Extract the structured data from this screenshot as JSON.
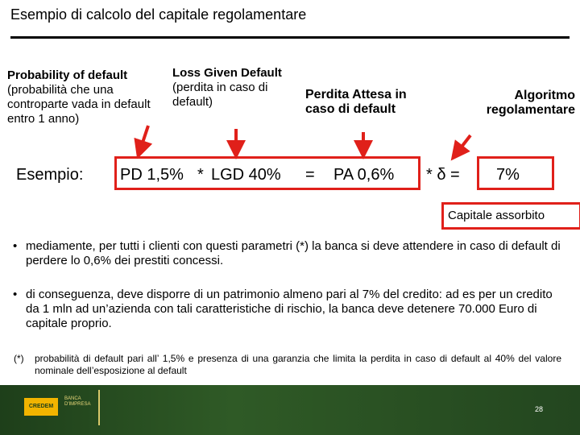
{
  "title": "Esempio di calcolo del capitale regolamentare",
  "headers": {
    "pd": {
      "title": "Probability of default",
      "desc": "(probabilità che una controparte vada in default entro 1 anno)"
    },
    "lgd": {
      "title": "Loss Given Default",
      "desc": "(perdita in caso di default)"
    },
    "pa": {
      "title": "Perdita Attesa in caso di default"
    },
    "alg": {
      "title": "Algoritmo regolamentare"
    }
  },
  "equation": {
    "prefix": "Esempio:",
    "pd": "PD 1,5%",
    "times1": "*",
    "lgd": "LGD 40%",
    "equals": "=",
    "pa": "PA 0,6%",
    "delta": "* δ =",
    "result": "7%"
  },
  "result_label": "Capitale assorbito",
  "bullets": [
    "mediamente, per tutti i clienti con questi parametri (*) la banca si deve attendere in caso di default di perdere lo 0,6% dei prestiti concessi.",
    "di conseguenza, deve disporre di un patrimonio almeno pari al 7% del credito: ad es per un credito da 1 mln ad un’azienda con tali caratteristiche di rischio, la banca deve detenere 70.000 Euro di capitale proprio."
  ],
  "footnote": {
    "marker": "(*)",
    "text": "probabilità di default pari all’ 1,5% e presenza di una garanzia che limita la perdita in caso di default al 40% del valore nominale dell’esposizione al default"
  },
  "footer": {
    "logo1": "CREDEM",
    "logo2": "BANCA D'IMPRESA",
    "page": "28"
  },
  "colors": {
    "accent": "#e0201a",
    "band": "#2f5a26"
  }
}
